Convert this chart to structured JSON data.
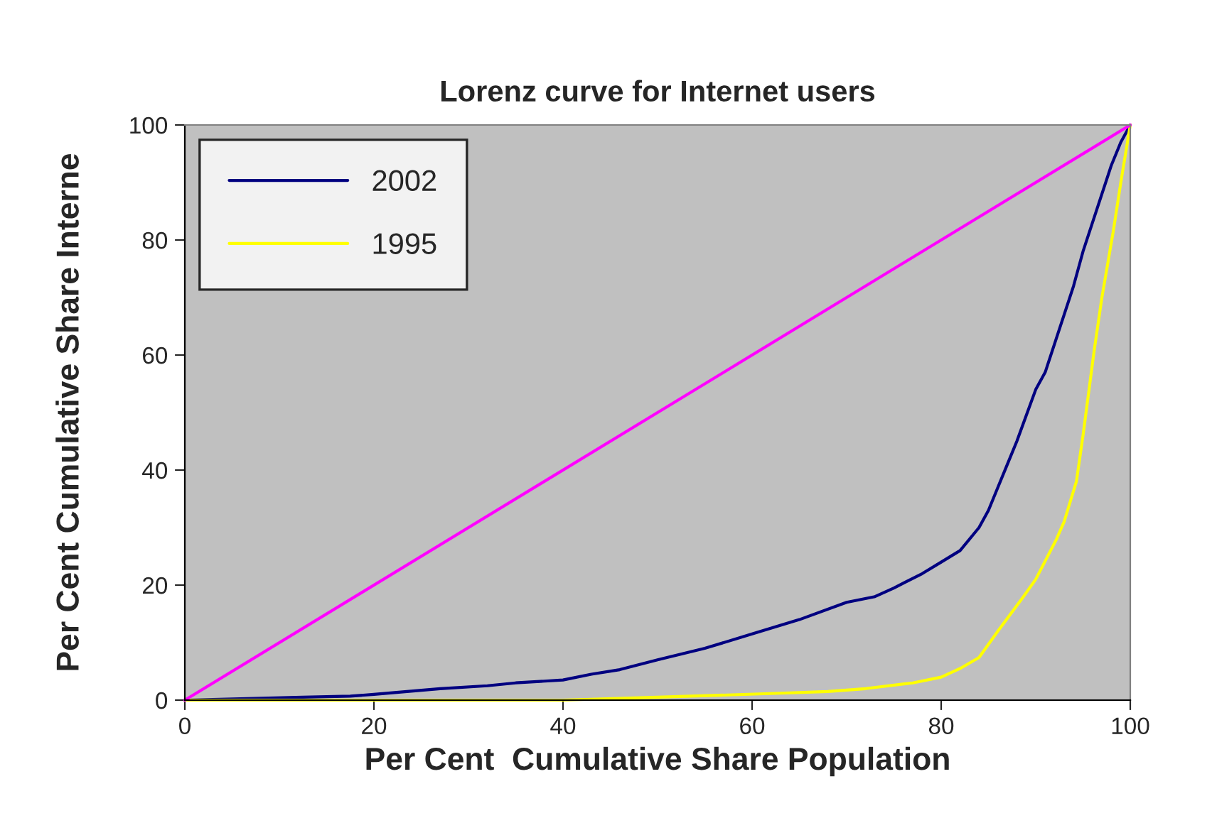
{
  "chart_data": {
    "type": "line",
    "title": "Lorenz curve for Internet users",
    "xlabel": "Per Cent  Cumulative Share Population",
    "ylabel": "Per Cent Cumulative Share Interne",
    "xlim": [
      0,
      100
    ],
    "ylim": [
      0,
      100
    ],
    "xticks": [
      0,
      20,
      40,
      60,
      80,
      100
    ],
    "yticks": [
      0,
      20,
      40,
      60,
      80,
      100
    ],
    "grid": false,
    "legend": "top left",
    "marker": "none",
    "line_style": "solid",
    "series": [
      {
        "name": "2002",
        "color": "#000080",
        "x": [
          0,
          12.5,
          17.5,
          20,
          27,
          32,
          35,
          40,
          43,
          46,
          50,
          55,
          60,
          65,
          70,
          73,
          75,
          78,
          80,
          82,
          84,
          85,
          86,
          87,
          88,
          89,
          90,
          91,
          92,
          93,
          94,
          95,
          96,
          97,
          98,
          99,
          100
        ],
        "values": [
          0,
          0.5,
          0.7,
          1,
          2,
          2.5,
          3,
          3.5,
          4.5,
          5.3,
          7,
          9,
          11.5,
          14,
          17,
          18,
          19.5,
          22,
          24,
          26,
          30,
          33,
          37,
          41,
          45,
          49.5,
          54,
          57,
          62,
          67,
          72,
          78,
          83,
          88,
          93,
          97,
          100
        ]
      },
      {
        "name": "1995",
        "color": "#ffff00",
        "x": [
          0,
          40,
          50,
          63,
          68,
          72,
          77,
          80,
          82,
          84,
          86,
          88.7,
          90,
          92.2,
          93,
          94.3,
          95,
          96.2,
          97,
          98.2,
          99,
          100
        ],
        "values": [
          0,
          0,
          0.5,
          1.2,
          1.5,
          2,
          3,
          4,
          5.5,
          7.4,
          12,
          18,
          21,
          28,
          31,
          38,
          46,
          61,
          70,
          81.5,
          90,
          100
        ]
      },
      {
        "color": "#ff00ff",
        "x": [
          0,
          100
        ],
        "values": [
          0,
          100
        ]
      }
    ]
  }
}
